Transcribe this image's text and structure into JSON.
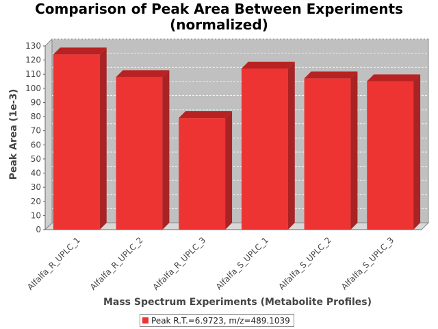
{
  "chart_data": {
    "type": "bar",
    "title": "Comparison of Peak Area Between Experiments (normalized)",
    "title_lines": [
      "Comparison of Peak Area Between Experiments",
      "(normalized)"
    ],
    "xlabel": "Mass Spectrum Experiments (Metabolite Profiles)",
    "ylabel": "Peak Area (1e-3)",
    "categories": [
      "Alfalfa_R_UPLC_1",
      "Alfalfa_R_UPLC_2",
      "Alfalfa_R_UPLC_3",
      "Alfalfa_S_UPLC_1",
      "Alfalfa_S_UPLC_2",
      "Alfalfa_S_UPLC_3"
    ],
    "series": [
      {
        "name": "Peak R.T.=6.9723, m/z=489.1039",
        "values": [
          124,
          108,
          79,
          114,
          107,
          105
        ],
        "color": "#ee3333"
      }
    ],
    "ylim": [
      0,
      130
    ],
    "yticks": [
      0,
      10,
      20,
      30,
      40,
      50,
      60,
      70,
      80,
      90,
      100,
      110,
      120,
      130
    ],
    "grid": true,
    "legend_position": "bottom",
    "plot_background": "#c0c0c0"
  }
}
